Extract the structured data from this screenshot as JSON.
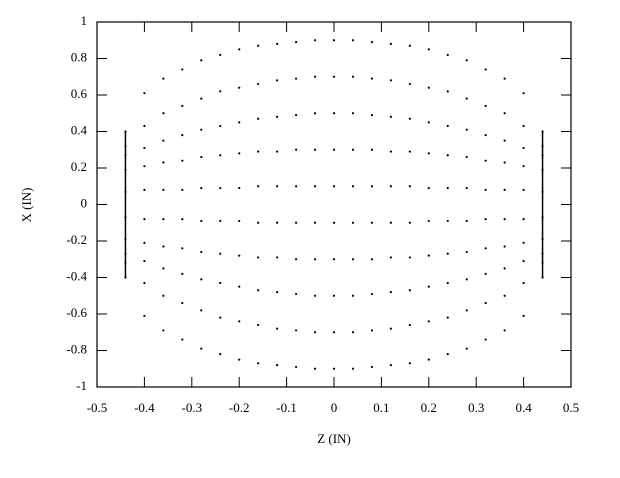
{
  "chart_data": {
    "type": "line",
    "xlabel": "Z (IN)",
    "ylabel": "X (IN)",
    "xlim": [
      -0.5,
      0.5
    ],
    "xticks": [
      -0.5,
      -0.4,
      -0.3,
      -0.2,
      -0.1,
      0,
      0.1,
      0.2,
      0.3,
      0.4,
      0.5
    ],
    "ylim": [
      -1,
      1
    ],
    "yticks": [
      -1,
      -0.8,
      -0.6,
      -0.4,
      -0.2,
      0,
      0.2,
      0.4,
      0.6,
      0.8,
      1
    ],
    "color": "#000000",
    "x": [
      -0.44,
      -0.4,
      -0.36,
      -0.32,
      -0.28,
      -0.24,
      -0.2,
      -0.16,
      -0.12,
      -0.08,
      -0.04,
      0,
      0.04,
      0.08,
      0.12,
      0.16,
      0.2,
      0.24,
      0.28,
      0.32,
      0.36,
      0.4,
      0.44
    ],
    "series": [
      {
        "style": "dotted",
        "values": [
          0.4,
          0.61,
          0.69,
          0.74,
          0.79,
          0.82,
          0.85,
          0.87,
          0.88,
          0.89,
          0.9,
          0.9,
          0.9,
          0.89,
          0.88,
          0.87,
          0.85,
          0.82,
          0.79,
          0.74,
          0.69,
          0.61,
          0.4
        ]
      },
      {
        "style": "dotted",
        "values": [
          0.32,
          0.43,
          0.5,
          0.54,
          0.58,
          0.62,
          0.64,
          0.66,
          0.68,
          0.69,
          0.7,
          0.7,
          0.7,
          0.69,
          0.68,
          0.66,
          0.64,
          0.62,
          0.58,
          0.54,
          0.5,
          0.43,
          0.32
        ]
      },
      {
        "style": "dotted",
        "values": [
          0.27,
          0.31,
          0.35,
          0.38,
          0.41,
          0.43,
          0.45,
          0.47,
          0.48,
          0.49,
          0.5,
          0.5,
          0.5,
          0.49,
          0.48,
          0.47,
          0.45,
          0.43,
          0.41,
          0.38,
          0.35,
          0.31,
          0.27
        ]
      },
      {
        "style": "dotted",
        "values": [
          0.19,
          0.21,
          0.23,
          0.24,
          0.26,
          0.27,
          0.28,
          0.29,
          0.29,
          0.3,
          0.3,
          0.3,
          0.3,
          0.3,
          0.29,
          0.29,
          0.28,
          0.27,
          0.26,
          0.24,
          0.23,
          0.21,
          0.19
        ]
      },
      {
        "style": "dotted",
        "values": [
          0.07,
          0.08,
          0.08,
          0.08,
          0.09,
          0.09,
          0.09,
          0.1,
          0.1,
          0.1,
          0.1,
          0.1,
          0.1,
          0.1,
          0.1,
          0.1,
          0.09,
          0.09,
          0.09,
          0.08,
          0.08,
          0.08,
          0.07
        ]
      },
      {
        "style": "dotted",
        "values": [
          -0.07,
          -0.08,
          -0.08,
          -0.08,
          -0.09,
          -0.09,
          -0.09,
          -0.1,
          -0.1,
          -0.1,
          -0.1,
          -0.1,
          -0.1,
          -0.1,
          -0.1,
          -0.1,
          -0.09,
          -0.09,
          -0.09,
          -0.08,
          -0.08,
          -0.08,
          -0.07
        ]
      },
      {
        "style": "dotted",
        "values": [
          -0.19,
          -0.21,
          -0.23,
          -0.24,
          -0.26,
          -0.27,
          -0.28,
          -0.29,
          -0.29,
          -0.3,
          -0.3,
          -0.3,
          -0.3,
          -0.3,
          -0.29,
          -0.29,
          -0.28,
          -0.27,
          -0.26,
          -0.24,
          -0.23,
          -0.21,
          -0.19
        ]
      },
      {
        "style": "dotted",
        "values": [
          -0.27,
          -0.31,
          -0.35,
          -0.38,
          -0.41,
          -0.43,
          -0.45,
          -0.47,
          -0.48,
          -0.49,
          -0.5,
          -0.5,
          -0.5,
          -0.49,
          -0.48,
          -0.47,
          -0.45,
          -0.43,
          -0.41,
          -0.38,
          -0.35,
          -0.31,
          -0.27
        ]
      },
      {
        "style": "dotted",
        "values": [
          -0.32,
          -0.43,
          -0.5,
          -0.54,
          -0.58,
          -0.62,
          -0.64,
          -0.66,
          -0.68,
          -0.69,
          -0.7,
          -0.7,
          -0.7,
          -0.69,
          -0.68,
          -0.66,
          -0.64,
          -0.62,
          -0.58,
          -0.54,
          -0.5,
          -0.43,
          -0.32
        ]
      },
      {
        "style": "dotted",
        "values": [
          -0.4,
          -0.61,
          -0.69,
          -0.74,
          -0.79,
          -0.82,
          -0.85,
          -0.87,
          -0.88,
          -0.89,
          -0.9,
          -0.9,
          -0.9,
          -0.89,
          -0.88,
          -0.87,
          -0.85,
          -0.82,
          -0.79,
          -0.74,
          -0.69,
          -0.61,
          -0.4
        ]
      },
      {
        "style": "solid",
        "x": [
          -0.44,
          -0.44
        ],
        "values": [
          -0.4,
          0.4
        ]
      },
      {
        "style": "solid",
        "x": [
          0.44,
          0.44
        ],
        "values": [
          -0.4,
          0.4
        ]
      }
    ]
  }
}
